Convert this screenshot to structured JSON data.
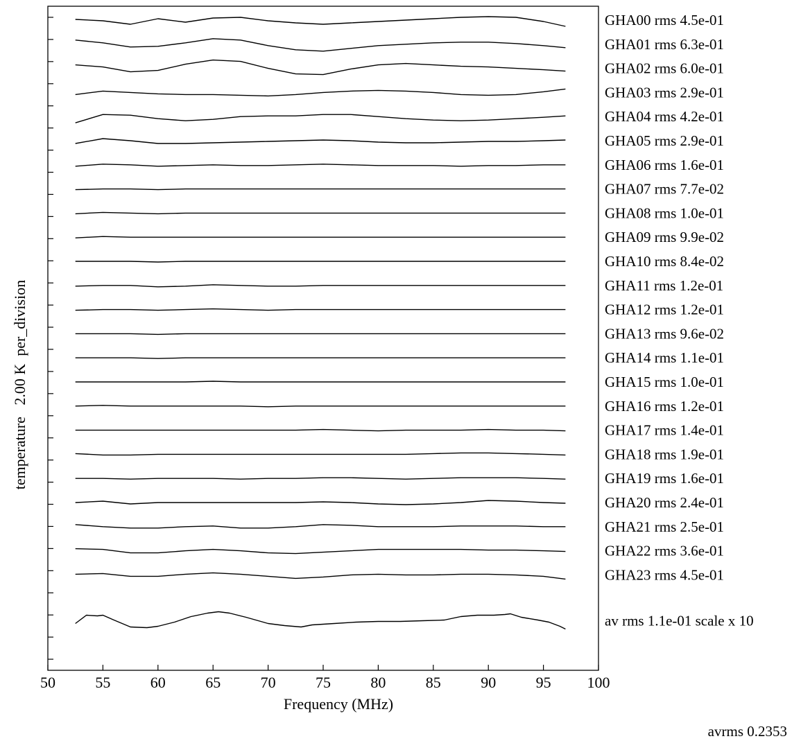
{
  "chart_data": {
    "type": "line",
    "xlabel": "Frequency (MHz)",
    "ylabel": "temperature   2.00 K  per_division",
    "xlim": [
      50,
      100
    ],
    "x_ticks": [
      50,
      55,
      60,
      65,
      70,
      75,
      80,
      85,
      90,
      95,
      100
    ],
    "x_tick_labels": [
      "50",
      "55",
      "60",
      "65",
      "70",
      "75",
      "80",
      "85",
      "90",
      "95",
      "100"
    ],
    "y_divisions": 30,
    "y_ticks_labeled": false,
    "grid": false,
    "line_color": "#000000",
    "series_x_range": [
      52.5,
      97
    ],
    "series": [
      {
        "name": "GHA00",
        "label": "GHA00 rms 4.5e-01",
        "offset": 0,
        "x": [
          52.5,
          55,
          57.5,
          60,
          62.5,
          65,
          67.5,
          70,
          72.5,
          75,
          77.5,
          80,
          82.5,
          85,
          87.5,
          90,
          92.5,
          95,
          97
        ],
        "y": [
          0.1,
          -0.1,
          -0.6,
          0.2,
          -0.3,
          0.3,
          0.4,
          -0.1,
          -0.4,
          -0.6,
          -0.4,
          -0.2,
          0,
          0.2,
          0.4,
          0.5,
          0.4,
          -0.2,
          -0.9
        ]
      },
      {
        "name": "GHA01",
        "label": "GHA01 rms 6.3e-01",
        "offset": 1,
        "x": [
          52.5,
          55,
          57.5,
          60,
          62.5,
          65,
          67.5,
          70,
          72.5,
          75,
          77.5,
          80,
          82.5,
          85,
          87.5,
          90,
          92.5,
          95,
          97
        ],
        "y": [
          0.6,
          0.2,
          -0.4,
          -0.3,
          0.2,
          0.8,
          0.6,
          -0.2,
          -0.8,
          -1,
          -0.6,
          -0.2,
          0,
          0.2,
          0.3,
          0.3,
          0.1,
          -0.2,
          -0.5
        ]
      },
      {
        "name": "GHA02",
        "label": "GHA02 rms 6.0e-01",
        "offset": 2,
        "x": [
          52.5,
          55,
          57.5,
          60,
          62.5,
          65,
          67.5,
          70,
          72.5,
          75,
          77.5,
          80,
          82.5,
          85,
          87.5,
          90,
          92.5,
          95,
          97
        ],
        "y": [
          0.5,
          0.2,
          -0.5,
          -0.3,
          0.6,
          1.2,
          1,
          0,
          -0.8,
          -0.9,
          -0.1,
          0.5,
          0.7,
          0.5,
          0.3,
          0.2,
          0,
          -0.2,
          -0.4
        ]
      },
      {
        "name": "GHA03",
        "label": "GHA03 rms 2.9e-01",
        "offset": 3,
        "x": [
          52.5,
          55,
          57.5,
          60,
          62.5,
          65,
          67.5,
          70,
          72.5,
          75,
          77.5,
          80,
          82.5,
          85,
          87.5,
          90,
          92.5,
          95,
          97
        ],
        "y": [
          -0.3,
          0.2,
          0,
          -0.2,
          -0.3,
          -0.3,
          -0.4,
          -0.5,
          -0.3,
          0,
          0.2,
          0.3,
          0.2,
          0,
          -0.3,
          -0.4,
          -0.3,
          0.1,
          0.5
        ]
      },
      {
        "name": "GHA04",
        "label": "GHA04 rms 4.2e-01",
        "offset": 4,
        "x": [
          52.5,
          55,
          57.5,
          60,
          62.5,
          65,
          67.5,
          70,
          72.5,
          75,
          77.5,
          80,
          82.5,
          85,
          87.5,
          90,
          92.5,
          95,
          97
        ],
        "y": [
          -0.9,
          0.3,
          0.2,
          -0.3,
          -0.6,
          -0.4,
          0,
          0.1,
          0.1,
          0.3,
          0.3,
          0,
          -0.3,
          -0.5,
          -0.6,
          -0.5,
          -0.3,
          -0.1,
          0.1
        ]
      },
      {
        "name": "GHA05",
        "label": "GHA05 rms 2.9e-01",
        "offset": 5,
        "x": [
          52.5,
          55,
          57.5,
          60,
          62.5,
          65,
          67.5,
          70,
          72.5,
          75,
          77.5,
          80,
          82.5,
          85,
          87.5,
          90,
          92.5,
          95,
          97
        ],
        "y": [
          -0.4,
          0.3,
          0,
          -0.4,
          -0.4,
          -0.3,
          -0.2,
          -0.1,
          0,
          0.1,
          0,
          -0.2,
          -0.3,
          -0.3,
          -0.2,
          -0.1,
          -0.1,
          0,
          0.1
        ]
      },
      {
        "name": "GHA06",
        "label": "GHA06 rms 1.6e-01",
        "offset": 6,
        "x": [
          52.5,
          55,
          57.5,
          60,
          62.5,
          65,
          67.5,
          70,
          72.5,
          75,
          77.5,
          80,
          82.5,
          85,
          87.5,
          90,
          92.5,
          95,
          97
        ],
        "y": [
          -0.2,
          0.1,
          0,
          -0.2,
          -0.1,
          0,
          -0.1,
          -0.1,
          0,
          0.1,
          0,
          -0.1,
          -0.1,
          -0.1,
          -0.2,
          -0.1,
          -0.1,
          0,
          0
        ]
      },
      {
        "name": "GHA07",
        "label": "GHA07 rms 7.7e-02",
        "offset": 7,
        "x": [
          52.5,
          55,
          57.5,
          60,
          62.5,
          65,
          67.5,
          70,
          72.5,
          75,
          77.5,
          80,
          82.5,
          85,
          87.5,
          90,
          92.5,
          95,
          97
        ],
        "y": [
          -0.1,
          0,
          0,
          -0.1,
          0,
          0,
          0,
          0,
          0,
          0,
          0,
          0,
          0,
          0,
          0,
          0,
          0,
          0,
          0
        ]
      },
      {
        "name": "GHA08",
        "label": "GHA08 rms 1.0e-01",
        "offset": 8,
        "x": [
          52.5,
          55,
          57.5,
          60,
          62.5,
          65,
          67.5,
          70,
          72.5,
          75,
          77.5,
          80,
          82.5,
          85,
          87.5,
          90,
          92.5,
          95,
          97
        ],
        "y": [
          -0.1,
          0.1,
          0,
          -0.1,
          0,
          0,
          0,
          0,
          0,
          0,
          0,
          0,
          0,
          0,
          0,
          0,
          0,
          0,
          0
        ]
      },
      {
        "name": "GHA09",
        "label": "GHA09 rms 9.9e-02",
        "offset": 9,
        "x": [
          52.5,
          55,
          57.5,
          60,
          62.5,
          65,
          67.5,
          70,
          72.5,
          75,
          77.5,
          80,
          82.5,
          85,
          87.5,
          90,
          92.5,
          95,
          97
        ],
        "y": [
          -0.1,
          0.1,
          0,
          0,
          0,
          0,
          0,
          0,
          0,
          0,
          0,
          0,
          0,
          0,
          0,
          0,
          0,
          0,
          0
        ]
      },
      {
        "name": "GHA10",
        "label": "GHA10 rms 8.4e-02",
        "offset": 10,
        "x": [
          52.5,
          55,
          57.5,
          60,
          62.5,
          65,
          67.5,
          70,
          72.5,
          75,
          77.5,
          80,
          82.5,
          85,
          87.5,
          90,
          92.5,
          95,
          97
        ],
        "y": [
          0,
          0,
          0,
          -0.1,
          0,
          0,
          0,
          0,
          0,
          0,
          0,
          0,
          0,
          0,
          0,
          0,
          0,
          0,
          0
        ]
      },
      {
        "name": "GHA11",
        "label": "GHA11 rms 1.2e-01",
        "offset": 11,
        "x": [
          52.5,
          55,
          57.5,
          60,
          62.5,
          65,
          67.5,
          70,
          72.5,
          75,
          77.5,
          80,
          82.5,
          85,
          87.5,
          90,
          92.5,
          95,
          97
        ],
        "y": [
          -0.1,
          0,
          0,
          -0.2,
          -0.1,
          0.1,
          0,
          -0.1,
          -0.1,
          0,
          0,
          0,
          0,
          0,
          0,
          0,
          0,
          0,
          0
        ]
      },
      {
        "name": "GHA12",
        "label": "GHA12 rms 1.2e-01",
        "offset": 12,
        "x": [
          52.5,
          55,
          57.5,
          60,
          62.5,
          65,
          67.5,
          70,
          72.5,
          75,
          77.5,
          80,
          82.5,
          85,
          87.5,
          90,
          92.5,
          95,
          97
        ],
        "y": [
          -0.1,
          0,
          0,
          -0.1,
          0,
          0.1,
          0,
          -0.1,
          0,
          0,
          0,
          0,
          0,
          0,
          0,
          0,
          0,
          0,
          0
        ]
      },
      {
        "name": "GHA13",
        "label": "GHA13 rms 9.6e-02",
        "offset": 13,
        "x": [
          52.5,
          55,
          57.5,
          60,
          62.5,
          65,
          67.5,
          70,
          72.5,
          75,
          77.5,
          80,
          82.5,
          85,
          87.5,
          90,
          92.5,
          95,
          97
        ],
        "y": [
          0,
          0,
          0,
          -0.1,
          0,
          0,
          0,
          0,
          0,
          0,
          0,
          0,
          0,
          0,
          0,
          0,
          0,
          0,
          0
        ]
      },
      {
        "name": "GHA14",
        "label": "GHA14 rms 1.1e-01",
        "offset": 14,
        "x": [
          52.5,
          55,
          57.5,
          60,
          62.5,
          65,
          67.5,
          70,
          72.5,
          75,
          77.5,
          80,
          82.5,
          85,
          87.5,
          90,
          92.5,
          95,
          97
        ],
        "y": [
          0,
          0,
          0,
          -0.1,
          0,
          0,
          0,
          0,
          0,
          0,
          0,
          0,
          0,
          0,
          0,
          0,
          0,
          0,
          0
        ]
      },
      {
        "name": "GHA15",
        "label": "GHA15 rms 1.0e-01",
        "offset": 15,
        "x": [
          52.5,
          55,
          57.5,
          60,
          62.5,
          65,
          67.5,
          70,
          72.5,
          75,
          77.5,
          80,
          82.5,
          85,
          87.5,
          90,
          92.5,
          95,
          97
        ],
        "y": [
          0,
          0,
          0,
          0,
          0,
          0.1,
          0,
          0,
          0,
          0,
          0,
          0,
          0,
          0,
          0,
          0,
          0,
          0,
          0
        ]
      },
      {
        "name": "GHA16",
        "label": "GHA16 rms 1.2e-01",
        "offset": 16,
        "x": [
          52.5,
          55,
          57.5,
          60,
          62.5,
          65,
          67.5,
          70,
          72.5,
          75,
          77.5,
          80,
          82.5,
          85,
          87.5,
          90,
          92.5,
          95,
          97
        ],
        "y": [
          0,
          0.1,
          0,
          0,
          0,
          0,
          0,
          -0.1,
          0,
          0,
          0,
          0,
          0,
          0,
          0,
          0,
          0,
          0,
          0
        ]
      },
      {
        "name": "GHA17",
        "label": "GHA17 rms 1.4e-01",
        "offset": 17,
        "x": [
          52.5,
          55,
          57.5,
          60,
          62.5,
          65,
          67.5,
          70,
          72.5,
          75,
          77.5,
          80,
          82.5,
          85,
          87.5,
          90,
          92.5,
          95,
          97
        ],
        "y": [
          0,
          0,
          0,
          0,
          0,
          0,
          0,
          0,
          0,
          0.1,
          0,
          -0.1,
          0,
          0,
          0,
          0.1,
          0,
          0,
          -0.1
        ]
      },
      {
        "name": "GHA18",
        "label": "GHA18 rms 1.9e-01",
        "offset": 18,
        "x": [
          52.5,
          55,
          57.5,
          60,
          62.5,
          65,
          67.5,
          70,
          72.5,
          75,
          77.5,
          80,
          82.5,
          85,
          87.5,
          90,
          92.5,
          95,
          97
        ],
        "y": [
          0.1,
          -0.1,
          -0.1,
          0,
          0,
          0,
          0,
          0,
          0,
          0,
          0,
          0,
          0,
          0.1,
          0.2,
          0.2,
          0.1,
          0,
          -0.1
        ]
      },
      {
        "name": "GHA19",
        "label": "GHA19 rms 1.6e-01",
        "offset": 19,
        "x": [
          52.5,
          55,
          57.5,
          60,
          62.5,
          65,
          67.5,
          70,
          72.5,
          75,
          77.5,
          80,
          82.5,
          85,
          87.5,
          90,
          92.5,
          95,
          97
        ],
        "y": [
          0,
          0,
          -0.1,
          0,
          0,
          0,
          -0.1,
          0,
          0,
          0.1,
          0.1,
          0,
          -0.1,
          0,
          0.1,
          0.1,
          0.1,
          0,
          -0.1
        ]
      },
      {
        "name": "GHA20",
        "label": "GHA20 rms 2.4e-01",
        "offset": 20,
        "x": [
          52.5,
          55,
          57.5,
          60,
          62.5,
          65,
          67.5,
          70,
          72.5,
          75,
          77.5,
          80,
          82.5,
          85,
          87.5,
          90,
          92.5,
          95,
          97
        ],
        "y": [
          0,
          0.2,
          -0.2,
          0,
          0,
          0,
          0,
          0,
          0,
          0.1,
          0,
          -0.2,
          -0.3,
          -0.2,
          0,
          0.3,
          0.2,
          0,
          -0.1
        ]
      },
      {
        "name": "GHA21",
        "label": "GHA21 rms 2.5e-01",
        "offset": 21,
        "x": [
          52.5,
          55,
          57.5,
          60,
          62.5,
          65,
          67.5,
          70,
          72.5,
          75,
          77.5,
          80,
          82.5,
          85,
          87.5,
          90,
          92.5,
          95,
          97
        ],
        "y": [
          0.3,
          0,
          -0.2,
          -0.2,
          0,
          0.1,
          -0.2,
          -0.2,
          0,
          0.3,
          0.2,
          0,
          0,
          0,
          0.1,
          0.1,
          0.1,
          0,
          0
        ]
      },
      {
        "name": "GHA22",
        "label": "GHA22 rms 3.6e-01",
        "offset": 22,
        "x": [
          52.5,
          55,
          57.5,
          60,
          62.5,
          65,
          67.5,
          70,
          72.5,
          75,
          77.5,
          80,
          82.5,
          85,
          87.5,
          90,
          92.5,
          95,
          97
        ],
        "y": [
          0.3,
          0.2,
          -0.3,
          -0.3,
          0,
          0.2,
          0,
          -0.3,
          -0.4,
          -0.2,
          0,
          0.2,
          0.2,
          0.2,
          0.2,
          0.1,
          0.1,
          0,
          -0.1
        ]
      },
      {
        "name": "GHA23",
        "label": "GHA23 rms 4.5e-01",
        "offset": 23,
        "x": [
          52.5,
          55,
          57.5,
          60,
          62.5,
          65,
          67.5,
          70,
          72.5,
          75,
          77.5,
          80,
          82.5,
          85,
          87.5,
          90,
          92.5,
          95,
          97
        ],
        "y": [
          0.1,
          0.2,
          -0.2,
          -0.2,
          0.1,
          0.3,
          0.1,
          -0.2,
          -0.5,
          -0.3,
          0,
          0.1,
          0,
          0,
          0.1,
          0.1,
          0,
          -0.2,
          -0.6
        ]
      },
      {
        "name": "av",
        "label": "av  rms 1.1e-01 scale x 10",
        "offset": 24.9,
        "x": [
          52.5,
          53.5,
          54.5,
          55,
          56,
          57.5,
          59,
          60,
          61.5,
          63,
          64.5,
          65.5,
          66.5,
          68,
          70,
          71.5,
          73,
          74,
          76,
          78,
          80,
          82,
          84,
          86,
          87.5,
          89,
          90.5,
          91.5,
          92,
          93,
          94.5,
          95.5,
          96.5,
          97
        ],
        "y": [
          -0.4,
          0.8,
          0.7,
          0.8,
          0.1,
          -0.9,
          -1,
          -0.8,
          -0.2,
          0.6,
          1.1,
          1.3,
          1.1,
          0.5,
          -0.4,
          -0.7,
          -0.9,
          -0.6,
          -0.4,
          -0.2,
          -0.1,
          -0.1,
          0,
          0.1,
          0.6,
          0.8,
          0.8,
          0.9,
          1,
          0.5,
          0.1,
          -0.2,
          -0.8,
          -1.2
        ]
      }
    ],
    "footer_text": "avrms 0.2353"
  }
}
